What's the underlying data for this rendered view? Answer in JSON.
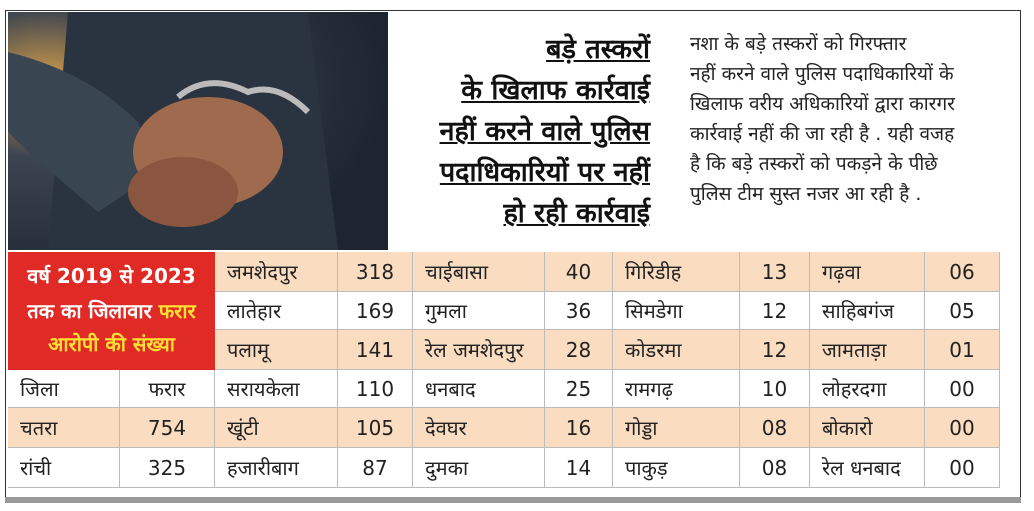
{
  "headline": [
    "बड़े तस्करों",
    "के खिलाफ कार्रवाई",
    "नहीं करने वाले पुलिस",
    "पदाधिकारियों पर नहीं",
    "हो रही कार्रवाई"
  ],
  "body": [
    "नशा के बड़े तस्करों को गिरफ्तार",
    "नहीं करने वाले पुलिस पदाधिकारियों के",
    "खिलाफ वरीय अधिकारियों द्वारा कारगर",
    "कार्रवाई नहीं की जा रही है . यही वजह",
    "है कि बड़े तस्करों को पकड़ने के पीछे",
    "पुलिस टीम सुस्त नजर आ रही है ."
  ],
  "caption": {
    "line1": "वर्ष 2019 से 2023",
    "line2": "तक का जिलावार",
    "line2_highlight": "फरार",
    "line3": "आरोपी की संख्या"
  },
  "left_table": {
    "header": [
      "जिला",
      "फरार"
    ],
    "rows": [
      [
        "चतरा",
        "754"
      ],
      [
        "रांची",
        "325"
      ]
    ]
  },
  "table": {
    "rows": [
      [
        "जमशेदपुर",
        "318",
        "चाईबासा",
        "40",
        "गिरिडीह",
        "13",
        "गढ़वा",
        "06"
      ],
      [
        "लातेहार",
        "169",
        "गुमला",
        "36",
        "सिमडेगा",
        "12",
        "साहिबगंज",
        "05"
      ],
      [
        "पलामू",
        "141",
        "रेल जमशेदपुर",
        "28",
        "कोडरमा",
        "12",
        "जामताड़ा",
        "01"
      ],
      [
        "सरायकेला",
        "110",
        "धनबाद",
        "25",
        "रामगढ़",
        "10",
        "लोहरदगा",
        "00"
      ],
      [
        "खूंटी",
        "105",
        "देवघर",
        "16",
        "गोड्डा",
        "08",
        "बोकारो",
        "00"
      ],
      [
        "हजारीबाग",
        "87",
        "दुमका",
        "14",
        "पाकुड़",
        "08",
        "रेल धनबाद",
        "00"
      ]
    ]
  }
}
